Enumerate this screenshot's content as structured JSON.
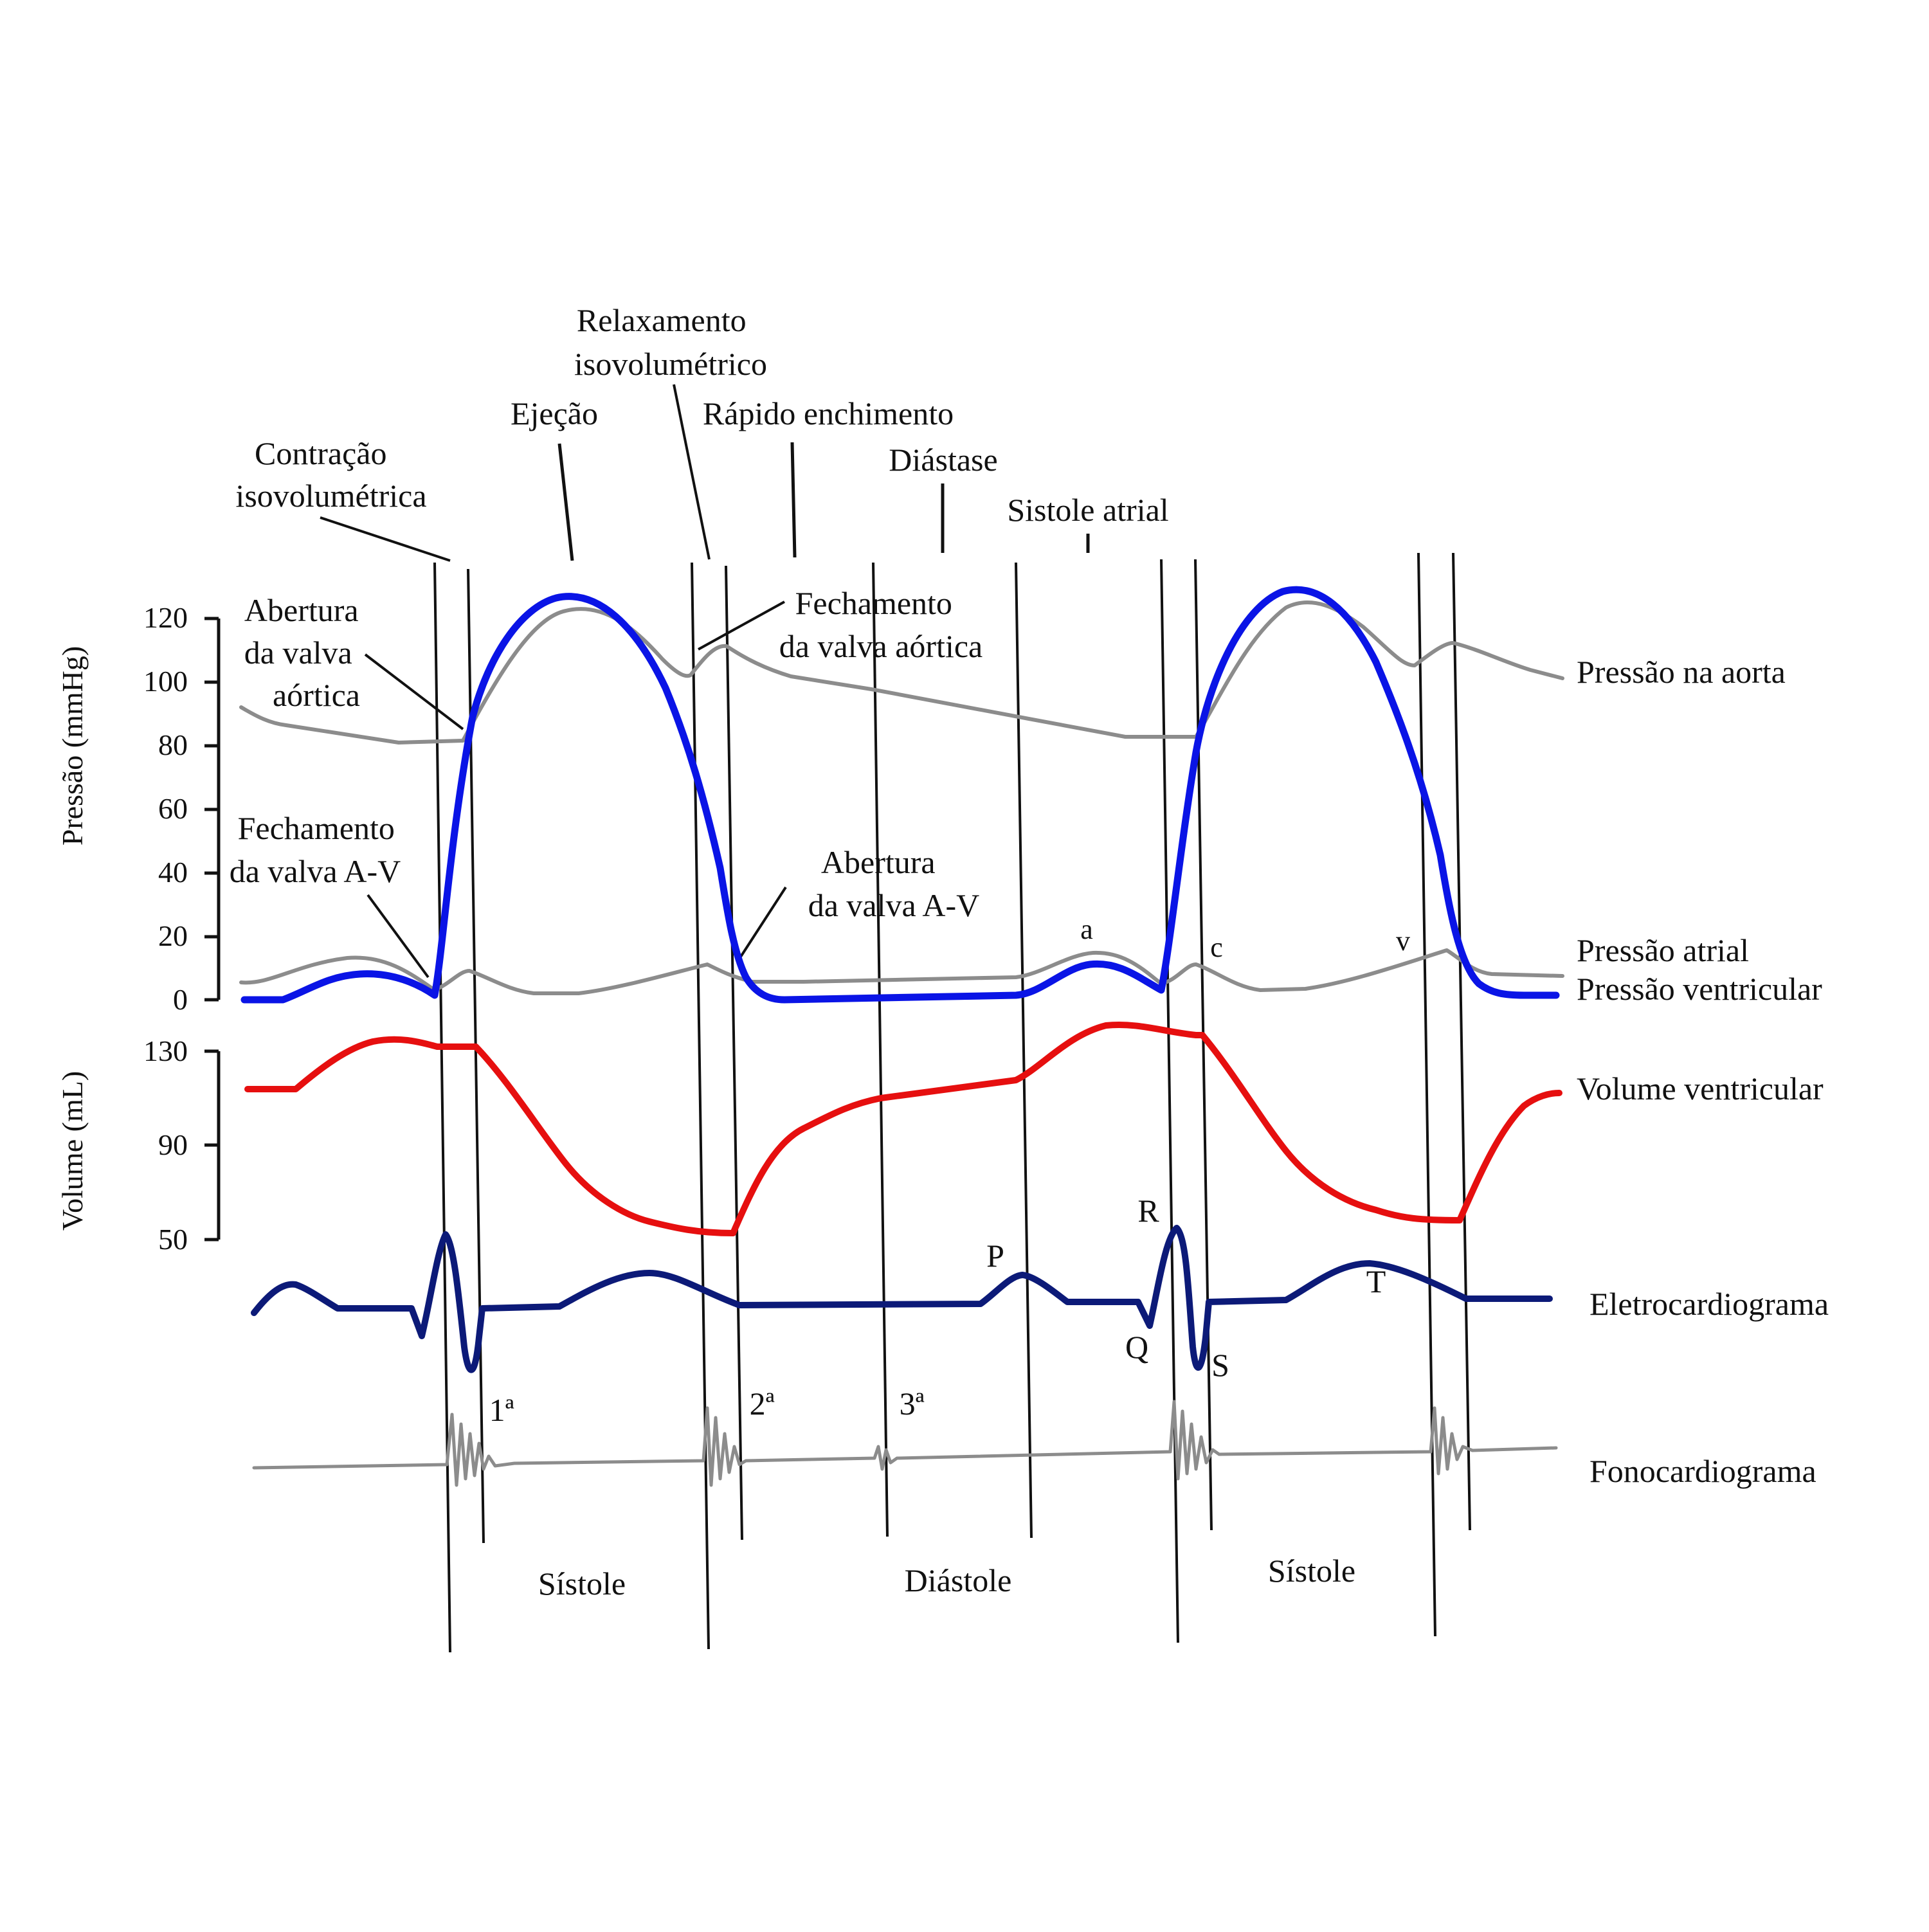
{
  "colors": {
    "ventricular_pressure": "#0a14e6",
    "aortic_pressure": "#8c8c8c",
    "atrial_pressure": "#8c8c8c",
    "ventricular_volume": "#e60f0f",
    "ecg": "#0c1a78",
    "phonocardiogram": "#8c8c8c",
    "lines": "#111111"
  },
  "phases": {
    "isovolumetric_contraction": [
      "Contração",
      "isovolumétrica"
    ],
    "ejection": "Ejeção",
    "isovolumetric_relaxation": [
      "Relaxamento",
      "isovolumétrico"
    ],
    "rapid_filling": "Rápido enchimento",
    "diastasis": "Diástase",
    "atrial_systole": "Sistole atrial"
  },
  "events": {
    "aortic_valve_opening": [
      "Abertura",
      "da valva",
      "aórtica"
    ],
    "av_valve_closing": [
      "Fechamento",
      "da valva A-V"
    ],
    "aortic_valve_closing": [
      "Fechamento",
      "da valva aórtica"
    ],
    "av_valve_opening": [
      "Abertura",
      "da valva A-V"
    ]
  },
  "axes": {
    "pressure_label": "Pressão (mmHg)",
    "pressure_ticks": [
      "120",
      "100",
      "80",
      "60",
      "40",
      "20",
      "0"
    ],
    "volume_label": "Volume (mL)",
    "volume_ticks": [
      "130",
      "90",
      "50"
    ]
  },
  "series_labels": {
    "aortic_pressure": "Pressão na aorta",
    "atrial_pressure": "Pressão atrial",
    "ventricular_pressure": "Pressão ventricular",
    "ventricular_volume": "Volume ventricular",
    "ecg": "Eletrocardiograma",
    "phono": "Fonocardiograma"
  },
  "wave_labels": {
    "a": "a",
    "c": "c",
    "v": "v",
    "P": "P",
    "Q": "Q",
    "R": "R",
    "S": "S",
    "T": "T"
  },
  "heart_sounds": [
    "1ª",
    "2ª",
    "3ª"
  ],
  "cycle_labels": {
    "systole_1": "Sístole",
    "diastole": "Diástole",
    "systole_2": "Sístole"
  }
}
